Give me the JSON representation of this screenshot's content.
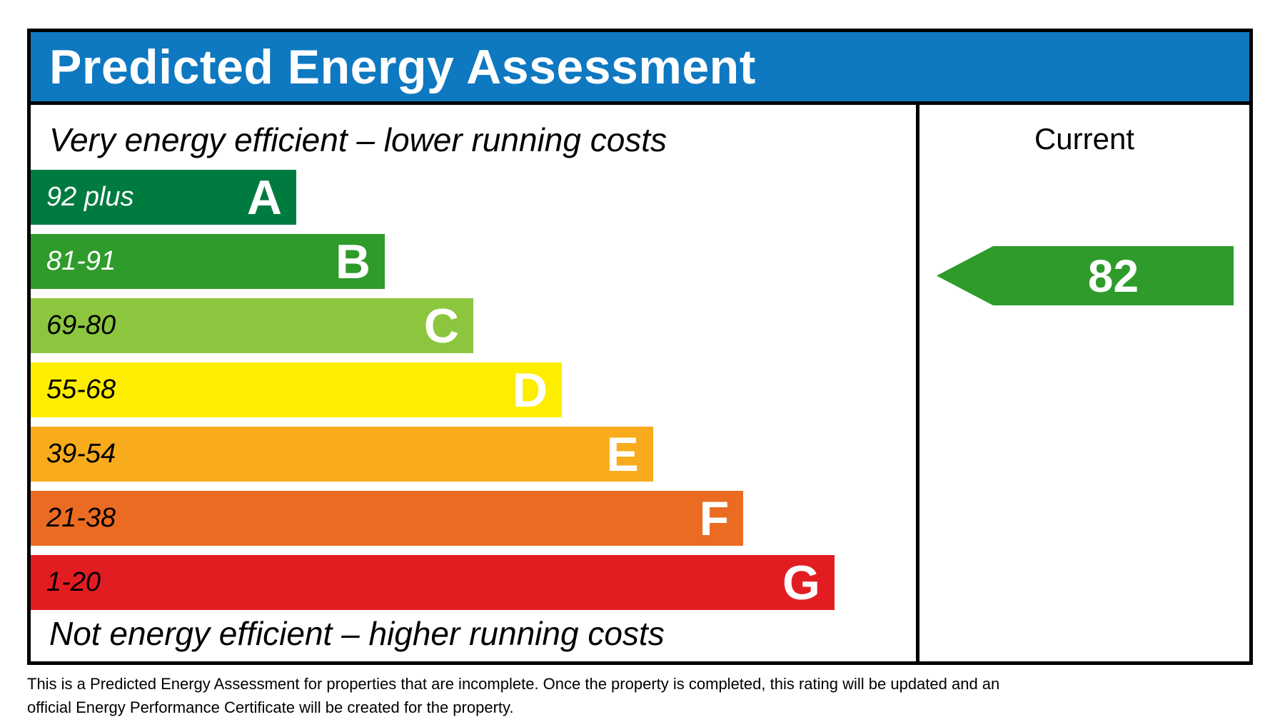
{
  "title": "Predicted Energy Assessment",
  "scale": {
    "top_label": "Very energy efficient – lower running costs",
    "bottom_label": "Not energy efficient – higher running costs"
  },
  "current": {
    "header": "Current",
    "value": "82",
    "band": "B",
    "arrow_color": "#2E9B2A"
  },
  "footer": {
    "line1": "This is a Predicted Energy Assessment for properties that are incomplete. Once the property is completed, this rating will be updated and an",
    "line2": "official Energy Performance Certificate will be created for the property."
  },
  "colors": {
    "header_bar": "#0E78C0",
    "frame_border": "#000000",
    "title_text": "#FFFFFF"
  },
  "chart_data": {
    "type": "bar",
    "title": "Predicted Energy Assessment",
    "orientation": "horizontal",
    "bands": [
      {
        "letter": "A",
        "range": "92 plus",
        "color": "#007B40",
        "width_pct": 30,
        "range_text_color": "#FFFFFF"
      },
      {
        "letter": "B",
        "range": "81-91",
        "color": "#2E9B2A",
        "width_pct": 40,
        "range_text_color": "#FFFFFF"
      },
      {
        "letter": "C",
        "range": "69-80",
        "color": "#8CC63F",
        "width_pct": 50,
        "range_text_color": "#000000"
      },
      {
        "letter": "D",
        "range": "55-68",
        "color": "#FDEE00",
        "width_pct": 60,
        "range_text_color": "#000000"
      },
      {
        "letter": "E",
        "range": "39-54",
        "color": "#F8AC1D",
        "width_pct": 70.3,
        "range_text_color": "#000000"
      },
      {
        "letter": "F",
        "range": "21-38",
        "color": "#EC6B23",
        "width_pct": 80.5,
        "range_text_color": "#000000"
      },
      {
        "letter": "G",
        "range": "1-20",
        "color": "#E21D22",
        "width_pct": 90.8,
        "range_text_color": "#000000"
      }
    ],
    "current_rating": {
      "value": 82,
      "band": "B"
    },
    "top_axis_label": "Very energy efficient – lower running costs",
    "bottom_axis_label": "Not energy efficient – higher running costs",
    "legend_position": "right-column"
  }
}
